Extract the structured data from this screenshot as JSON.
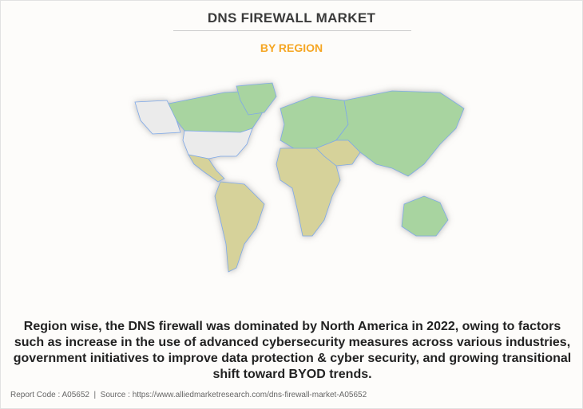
{
  "header": {
    "title": "DNS FIREWALL MARKET",
    "subtitle": "BY REGION"
  },
  "map": {
    "regions": [
      {
        "name": "North America",
        "color": "#ebebeb"
      },
      {
        "name": "Canada",
        "color": "#a8d4a0"
      },
      {
        "name": "Europe & Asia-Pacific",
        "color": "#a8d4a0"
      },
      {
        "name": "LAMEA",
        "color": "#d6d29a"
      }
    ],
    "border_color": "#7fa9e8"
  },
  "description": "Region wise, the DNS firewall was dominated by North America in 2022, owing to factors such as increase in the use of advanced cybersecurity measures across various industries, government initiatives to improve data protection & cyber security, and growing transitional shift toward BYOD trends.",
  "footer": "Report Code : A05652  |  Source : https://www.alliedmarketresearch.com/dns-firewall-market-A05652"
}
